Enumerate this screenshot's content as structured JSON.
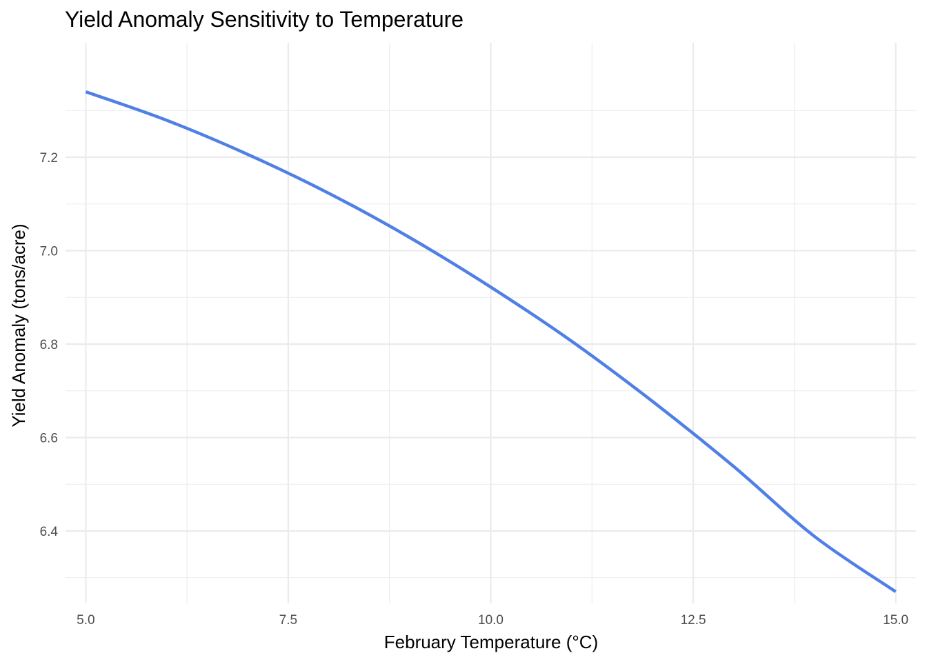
{
  "chart_data": {
    "type": "line",
    "title": "Yield Anomaly Sensitivity to Temperature",
    "xlabel": "February Temperature (°C)",
    "ylabel": "Yield Anomaly (tons/acre)",
    "xlim": [
      4.75,
      15.25
    ],
    "ylim": [
      6.245,
      7.445
    ],
    "x_ticks": [
      5.0,
      7.5,
      10.0,
      12.5,
      15.0
    ],
    "x_tick_labels": [
      "5.0",
      "7.5",
      "10.0",
      "12.5",
      "15.0"
    ],
    "y_ticks": [
      6.4,
      6.6,
      6.8,
      7.0,
      7.2
    ],
    "y_tick_labels": [
      "6.4",
      "6.6",
      "6.8",
      "7.0",
      "7.2"
    ],
    "x_minor_ticks": [
      6.25,
      8.75,
      11.25,
      13.75
    ],
    "y_minor_ticks": [
      6.3,
      6.5,
      6.7,
      6.9,
      7.1,
      7.3
    ],
    "grid": true,
    "legend": "none",
    "series": [
      {
        "color": "#5080e6",
        "x": [
          5.0,
          6.0,
          7.0,
          8.0,
          9.0,
          10.0,
          11.0,
          12.0,
          13.0,
          14.0,
          15.0
        ],
        "y": [
          7.34,
          7.279,
          7.206,
          7.123,
          7.028,
          6.922,
          6.806,
          6.677,
          6.538,
          6.388,
          6.27
        ]
      }
    ]
  }
}
